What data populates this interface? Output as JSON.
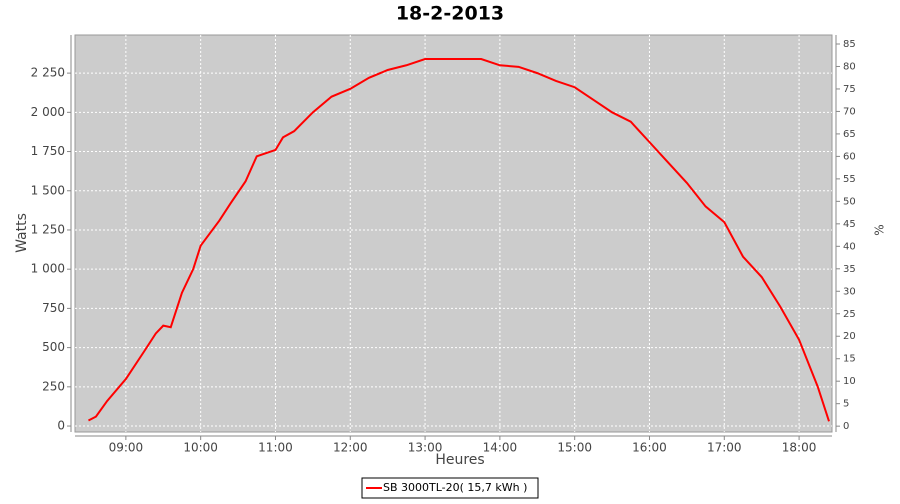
{
  "chart_data": {
    "type": "line",
    "title": "18-2-2013",
    "x_label": "Heures",
    "y_label": "Watts",
    "y2_label": "%",
    "x": [
      8.5,
      8.6,
      8.75,
      9.0,
      9.25,
      9.4,
      9.5,
      9.6,
      9.75,
      9.9,
      10.0,
      10.25,
      10.4,
      10.6,
      10.75,
      11.0,
      11.1,
      11.25,
      11.5,
      11.75,
      12.0,
      12.25,
      12.5,
      12.75,
      13.0,
      13.25,
      13.5,
      13.75,
      14.0,
      14.25,
      14.5,
      14.75,
      15.0,
      15.25,
      15.5,
      15.75,
      16.0,
      16.25,
      16.5,
      16.75,
      17.0,
      17.25,
      17.5,
      17.75,
      18.0,
      18.25,
      18.4
    ],
    "series": [
      {
        "name": "SB 3000TL-20( 15,7 kWh )",
        "color": "#ff0000",
        "values": [
          35,
          60,
          160,
          300,
          480,
          590,
          640,
          630,
          850,
          1000,
          1150,
          1310,
          1420,
          1560,
          1720,
          1760,
          1840,
          1880,
          2000,
          2100,
          2150,
          2220,
          2270,
          2300,
          2340,
          2340,
          2340,
          2340,
          2300,
          2290,
          2250,
          2200,
          2160,
          2080,
          2000,
          1940,
          1810,
          1680,
          1550,
          1400,
          1300,
          1080,
          950,
          760,
          550,
          250,
          30
        ]
      }
    ],
    "xlim": [
      8.32,
      18.44
    ],
    "xticks": [
      {
        "value": 9,
        "label": "09:00"
      },
      {
        "value": 10,
        "label": "10:00"
      },
      {
        "value": 11,
        "label": "11:00"
      },
      {
        "value": 12,
        "label": "12:00"
      },
      {
        "value": 13,
        "label": "13:00"
      },
      {
        "value": 14,
        "label": "14:00"
      },
      {
        "value": 15,
        "label": "15:00"
      },
      {
        "value": 16,
        "label": "16:00"
      },
      {
        "value": 17,
        "label": "17:00"
      },
      {
        "value": 18,
        "label": "18:00"
      }
    ],
    "ylim": [
      -38,
      2493
    ],
    "yticks": [
      0,
      250,
      500,
      750,
      {
        "value": 1000,
        "label": "1 000"
      },
      {
        "value": 1250,
        "label": "1 250"
      },
      {
        "value": 1500,
        "label": "1 500"
      },
      {
        "value": 1750,
        "label": "1 750"
      },
      {
        "value": 2000,
        "label": "2 000"
      },
      {
        "value": 2250,
        "label": "2 250"
      }
    ],
    "y2lim": [
      -1.3,
      87
    ],
    "y2ticks": [
      0,
      5,
      10,
      15,
      20,
      25,
      30,
      35,
      40,
      45,
      50,
      55,
      60,
      65,
      70,
      75,
      80,
      85
    ],
    "grid": true,
    "legend": "bottom"
  }
}
